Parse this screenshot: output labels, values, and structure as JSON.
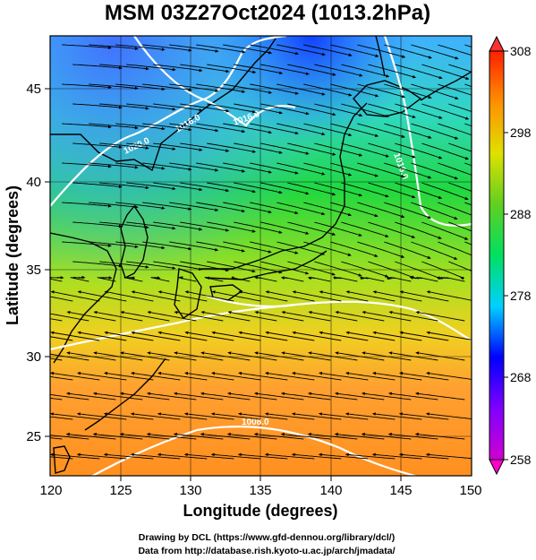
{
  "title": "MSM 03Z27Oct2024 (1013.2hPa)",
  "xlabel": "Longitude (degrees)",
  "ylabel": "Latitude  (degrees)",
  "x_ticks": [
    "120",
    "125",
    "130",
    "135",
    "140",
    "145",
    "150"
  ],
  "y_ticks": [
    "25",
    "30",
    "35",
    "40",
    "45"
  ],
  "colorbar": {
    "min": 258,
    "max": 308,
    "ticks": [
      "258",
      "268",
      "278",
      "288",
      "298",
      "308"
    ],
    "colors": [
      "#d000d0",
      "#8000ff",
      "#0000ff",
      "#00d0ff",
      "#00e060",
      "#60d020",
      "#e0e000",
      "#ff9000",
      "#ff2000"
    ]
  },
  "isobar_labels": [
    "1020.0",
    "1016.0",
    "1016.0",
    "1016.0",
    "1008.0"
  ],
  "credits": [
    "Drawing by DCL (https://www.gfd-dennou.org/library/dcl/)",
    "Data from http://database.rish.kyoto-u.ac.jp/arch/jmadata/"
  ],
  "chart_data": {
    "type": "heatmap",
    "title": "MSM 03Z27Oct2024 (1013.2hPa)",
    "xlabel": "Longitude (degrees)",
    "ylabel": "Latitude  (degrees)",
    "xlim": [
      120,
      150
    ],
    "ylim": [
      22.4,
      47.6
    ],
    "zlim": [
      258,
      308
    ],
    "overlays": [
      "streamlines",
      "isobars",
      "coastlines",
      "grid"
    ]
  }
}
